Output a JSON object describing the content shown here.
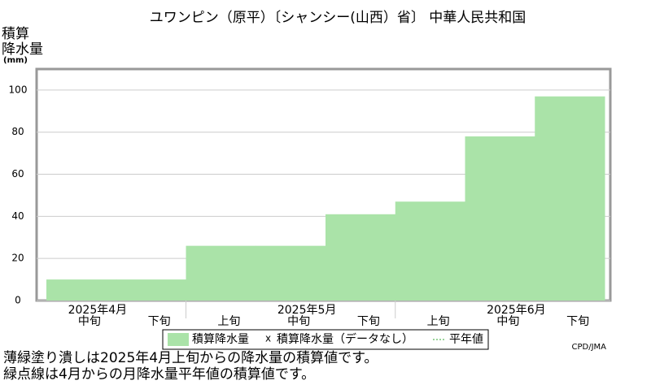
{
  "chart_data": {
    "type": "bar",
    "title": "ユワンピン（原平）〔シャンシー(山西）省〕 中華人民共和国",
    "y_label": [
      "積算",
      "降水量",
      "(mm)"
    ],
    "groups": [
      {
        "label": "2025年4月",
        "count": 2
      },
      {
        "label": "2025年5月",
        "count": 3
      },
      {
        "label": "2025年6月",
        "count": 3
      }
    ],
    "categories": [
      "中旬",
      "下旬",
      "上旬",
      "中旬",
      "下旬",
      "上旬",
      "中旬",
      "下旬"
    ],
    "series": [
      {
        "name": "積算降水量",
        "color": "#aae3a8",
        "values": [
          10,
          10,
          26,
          26,
          41,
          47,
          78,
          97
        ]
      }
    ],
    "legend_extra": [
      "積算降水量（データなし）",
      "平年値"
    ],
    "ylim": [
      0,
      110
    ],
    "yticks": [
      0,
      20,
      40,
      60,
      80,
      100
    ],
    "grid": true,
    "credit": "CPD/JMA",
    "notes": [
      "薄緑塗り潰しは2025年4月上旬からの降水量の積算値です。",
      "緑点線は4月からの月降水量平年値の積算値です。"
    ]
  }
}
